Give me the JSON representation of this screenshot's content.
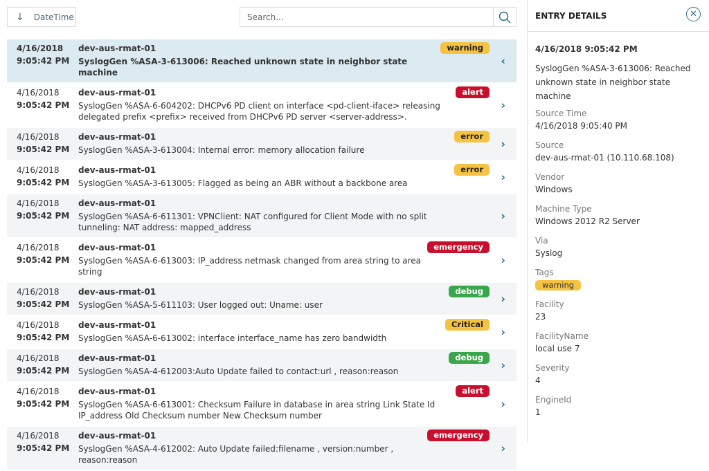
{
  "toolbar": {
    "sort_label": "DateTime",
    "sort_icon": "arrow-down-icon",
    "search_placeholder": "Search...",
    "search_icon": "search-icon"
  },
  "colors": {
    "warning": "#f5c242",
    "error": "#f5c242",
    "Critical": "#f5c242",
    "alert": "#c8102e",
    "emergency": "#c8102e",
    "debug": "#3aa64c",
    "selected_row": "#dcebf1",
    "accent": "#2e6f8e"
  },
  "entries": [
    {
      "date": "4/16/2018",
      "time": "9:05:42 PM",
      "host": "dev-aus-rmat-01",
      "message": "SyslogGen %ASA-3-613006: Reached unknown state in neighbor state machine",
      "badge": "warning",
      "selected": true
    },
    {
      "date": "4/16/2018",
      "time": "9:05:42 PM",
      "host": "dev-aus-rmat-01",
      "message": "SyslogGen %ASA-6-604202: DHCPv6 PD client on interface <pd-client-iface> releasing delegated prefix <prefix> received from DHCPv6 PD server <server-address>.",
      "badge": "alert"
    },
    {
      "date": "4/16/2018",
      "time": "9:05:42 PM",
      "host": "dev-aus-rmat-01",
      "message": "SyslogGen %ASA-3-613004: Internal error: memory allocation failure",
      "badge": "error"
    },
    {
      "date": "4/16/2018",
      "time": "9:05:42 PM",
      "host": "dev-aus-rmat-01",
      "message": "SyslogGen %ASA-3-613005: Flagged as being an ABR without a backbone area",
      "badge": "error"
    },
    {
      "date": "4/16/2018",
      "time": "9:05:42 PM",
      "host": "dev-aus-rmat-01",
      "message": "SyslogGen %ASA-6-611301: VPNClient: NAT configured for Client Mode with no split tunneling: NAT address: mapped_address",
      "badge": ""
    },
    {
      "date": "4/16/2018",
      "time": "9:05:42 PM",
      "host": "dev-aus-rmat-01",
      "message": "SyslogGen %ASA-6-613003: IP_address netmask changed from area string to area string",
      "badge": "emergency"
    },
    {
      "date": "4/16/2018",
      "time": "9:05:42 PM",
      "host": "dev-aus-rmat-01",
      "message": "SyslogGen %ASA-5-611103: User logged out: Uname: user",
      "badge": "debug"
    },
    {
      "date": "4/16/2018",
      "time": "9:05:42 PM",
      "host": "dev-aus-rmat-01",
      "message": "SyslogGen %ASA-6-613002: interface interface_name has zero bandwidth",
      "badge": "Critical"
    },
    {
      "date": "4/16/2018",
      "time": "9:05:42 PM",
      "host": "dev-aus-rmat-01",
      "message": "SyslogGen %ASA-4-612003:Auto Update failed to contact:url , reason:reason",
      "badge": "debug"
    },
    {
      "date": "4/16/2018",
      "time": "9:05:42 PM",
      "host": "dev-aus-rmat-01",
      "message": "SyslogGen %ASA-6-613001: Checksum Failure in database in area string Link State Id IP_address Old Checksum number New Checksum number",
      "badge": "alert"
    },
    {
      "date": "4/16/2018",
      "time": "9:05:42 PM",
      "host": "dev-aus-rmat-01",
      "message": "SyslogGen %ASA-4-612002: Auto Update failed:filename , version:number , reason:reason",
      "badge": "emergency"
    }
  ],
  "details": {
    "title": "ENTRY DETAILS",
    "datetime": "4/16/2018 9:05:42 PM",
    "message": "SyslogGen %ASA-3-613006: Reached unknown state in neighbor state machine",
    "fields": [
      {
        "label": "Source Time",
        "value": "4/16/2018 9:05:40 PM"
      },
      {
        "label": "Source",
        "value": "dev-aus-rmat-01 (10.110.68.108)"
      },
      {
        "label": "Vendor",
        "value": "Windows"
      },
      {
        "label": "Machine Type",
        "value": "Windows 2012 R2 Server"
      },
      {
        "label": "Via",
        "value": "Syslog"
      },
      {
        "label": "Tags",
        "value": "warning",
        "tag": true
      },
      {
        "label": "Facility",
        "value": "23"
      },
      {
        "label": "FacilityName",
        "value": "local use 7"
      },
      {
        "label": "Severity",
        "value": "4"
      },
      {
        "label": "EngineId",
        "value": "1"
      }
    ]
  }
}
